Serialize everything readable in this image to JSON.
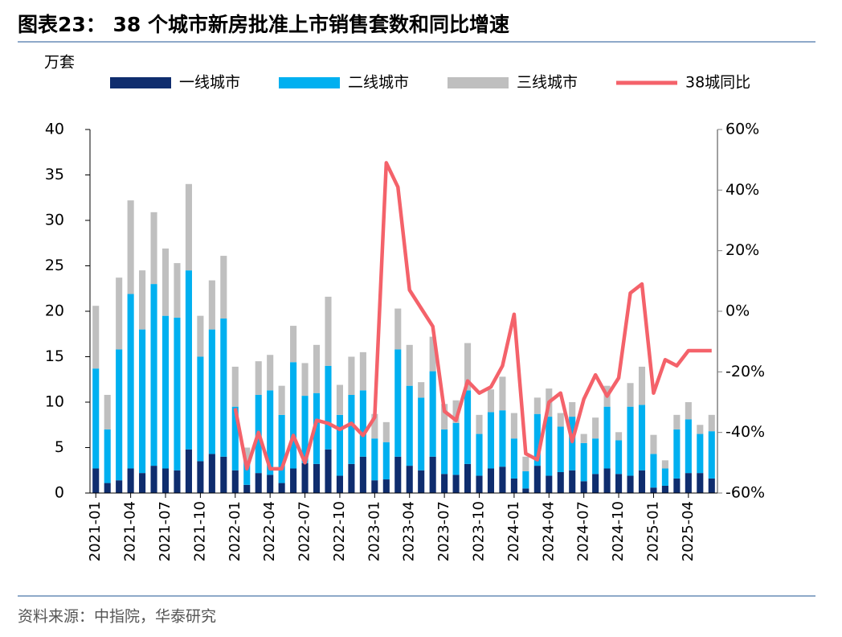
{
  "chart_data": {
    "type": "bar",
    "title": "图表23：  38 个城市新房批准上市销售套数和同比增速",
    "y_label": "万套",
    "source": "资料来源：中指院，华泰研究",
    "stacked": true,
    "categories": [
      "2021-01",
      null,
      null,
      "2021-04",
      null,
      null,
      "2021-07",
      null,
      null,
      "2021-10",
      null,
      null,
      "2022-01",
      null,
      null,
      "2022-04",
      null,
      null,
      "2022-07",
      null,
      null,
      "2022-10",
      null,
      null,
      "2023-01",
      null,
      null,
      "2023-04",
      null,
      null,
      "2023-07",
      null,
      null,
      "2023-10",
      null,
      null,
      "2024-01",
      null,
      null,
      "2024-04",
      null,
      null,
      "2024-07",
      null,
      null,
      "2024-10",
      null,
      null,
      "2025-01",
      null,
      null,
      "2025-04",
      null,
      null
    ],
    "series": [
      {
        "name": "一线城市",
        "type": "bar",
        "color": "#0f2d6e",
        "values": [
          2.7,
          1.1,
          1.4,
          2.7,
          2.2,
          3.0,
          2.7,
          2.5,
          4.8,
          3.5,
          4.3,
          4.0,
          2.5,
          0.9,
          2.2,
          2.0,
          1.1,
          2.7,
          3.3,
          3.2,
          4.8,
          1.9,
          3.2,
          4.0,
          1.4,
          1.5,
          4.0,
          3.0,
          2.5,
          4.0,
          2.1,
          2.0,
          3.2,
          1.9,
          2.7,
          2.9,
          1.6,
          0.5,
          3.0,
          1.9,
          2.3,
          2.5,
          1.3,
          2.1,
          2.7,
          2.1,
          1.9,
          2.5,
          0.6,
          0.8,
          1.6,
          2.2,
          2.2,
          1.6
        ]
      },
      {
        "name": "二线城市",
        "type": "bar",
        "color": "#00b0f0",
        "values": [
          11.0,
          5.9,
          14.4,
          19.2,
          15.8,
          20.0,
          16.8,
          16.8,
          19.7,
          11.5,
          13.7,
          15.2,
          7.0,
          2.6,
          8.6,
          9.3,
          7.5,
          11.7,
          7.4,
          7.8,
          9.2,
          6.7,
          7.6,
          7.3,
          4.6,
          4.1,
          11.8,
          8.8,
          8.0,
          9.4,
          4.9,
          5.7,
          8.1,
          4.6,
          6.2,
          6.2,
          4.4,
          1.9,
          5.7,
          6.5,
          5.0,
          5.9,
          4.2,
          3.9,
          6.8,
          3.7,
          7.6,
          7.2,
          3.7,
          1.9,
          5.4,
          5.9,
          4.3,
          5.2
        ]
      },
      {
        "name": "三线城市",
        "type": "bar",
        "color": "#bfbfbf",
        "values": [
          6.9,
          3.8,
          7.9,
          10.3,
          6.5,
          7.9,
          7.4,
          6.0,
          9.5,
          4.5,
          5.4,
          6.9,
          4.4,
          1.5,
          3.7,
          3.9,
          3.2,
          4.0,
          3.6,
          5.3,
          7.6,
          3.3,
          4.2,
          4.2,
          2.7,
          2.2,
          4.5,
          4.5,
          1.7,
          3.8,
          2.8,
          2.5,
          5.2,
          2.1,
          2.5,
          3.7,
          2.8,
          1.6,
          1.8,
          3.1,
          1.5,
          1.6,
          1.0,
          2.3,
          2.3,
          0.9,
          2.6,
          4.2,
          2.1,
          0.9,
          1.6,
          1.9,
          1.0,
          1.8
        ]
      },
      {
        "name": "38城同比",
        "type": "line",
        "axis": "y2",
        "color": "#f4626a",
        "values": [
          null,
          null,
          null,
          null,
          null,
          null,
          null,
          null,
          null,
          null,
          null,
          null,
          -32,
          -52,
          -40,
          -52,
          -52,
          -41,
          -50,
          -36,
          -37,
          -39,
          -37,
          -41,
          -35,
          49,
          41,
          7,
          1,
          -5,
          -33,
          -36,
          -23,
          -27,
          -25,
          -18,
          -1,
          -47,
          -49,
          -30,
          -27,
          -43,
          -29,
          -21,
          -28,
          -22,
          6,
          9,
          -27,
          -16,
          -18,
          -13,
          -13,
          -13
        ]
      }
    ],
    "ylim": [
      0,
      40
    ],
    "yticks": [
      0,
      5,
      10,
      15,
      20,
      25,
      30,
      35,
      40
    ],
    "y2lim": [
      -60,
      60
    ],
    "y2ticks": [
      {
        "value": -60,
        "label": "-60%"
      },
      {
        "value": -40,
        "label": "-40%"
      },
      {
        "value": -20,
        "label": "-20%"
      },
      {
        "value": 0,
        "label": "0%"
      },
      {
        "value": 20,
        "label": "20%"
      },
      {
        "value": 40,
        "label": "40%"
      },
      {
        "value": 60,
        "label": "60%"
      }
    ],
    "legend": "top"
  }
}
